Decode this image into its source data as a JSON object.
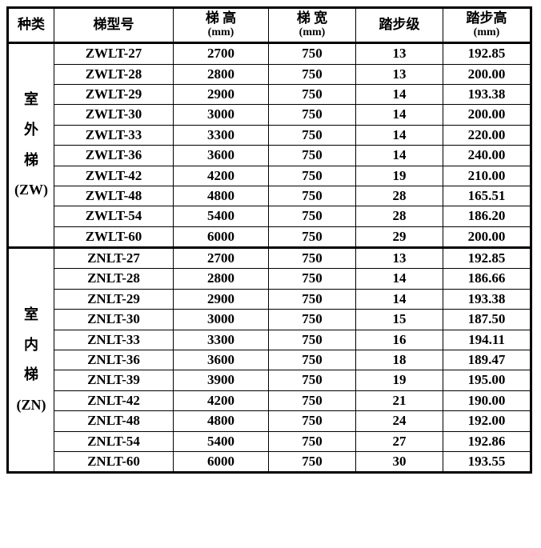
{
  "table": {
    "headers": {
      "category": "种类",
      "model": "梯型号",
      "height": "梯 高",
      "height_unit": "(mm)",
      "width": "梯 宽",
      "width_unit": "(mm)",
      "steps": "踏步级",
      "step_height": "踏步高",
      "step_height_unit": "(mm)"
    },
    "categories": [
      {
        "label_chars": [
          "室",
          "外",
          "梯"
        ],
        "code": "(ZW)",
        "rows": [
          {
            "model": "ZWLT-27",
            "h": "2700",
            "w": "750",
            "steps": "13",
            "sh": "192.85"
          },
          {
            "model": "ZWLT-28",
            "h": "2800",
            "w": "750",
            "steps": "13",
            "sh": "200.00"
          },
          {
            "model": "ZWLT-29",
            "h": "2900",
            "w": "750",
            "steps": "14",
            "sh": "193.38"
          },
          {
            "model": "ZWLT-30",
            "h": "3000",
            "w": "750",
            "steps": "14",
            "sh": "200.00"
          },
          {
            "model": "ZWLT-33",
            "h": "3300",
            "w": "750",
            "steps": "14",
            "sh": "220.00"
          },
          {
            "model": "ZWLT-36",
            "h": "3600",
            "w": "750",
            "steps": "14",
            "sh": "240.00"
          },
          {
            "model": "ZWLT-42",
            "h": "4200",
            "w": "750",
            "steps": "19",
            "sh": "210.00"
          },
          {
            "model": "ZWLT-48",
            "h": "4800",
            "w": "750",
            "steps": "28",
            "sh": "165.51"
          },
          {
            "model": "ZWLT-54",
            "h": "5400",
            "w": "750",
            "steps": "28",
            "sh": "186.20"
          },
          {
            "model": "ZWLT-60",
            "h": "6000",
            "w": "750",
            "steps": "29",
            "sh": "200.00"
          }
        ]
      },
      {
        "label_chars": [
          "室",
          "内",
          "梯"
        ],
        "code": "(ZN)",
        "rows": [
          {
            "model": "ZNLT-27",
            "h": "2700",
            "w": "750",
            "steps": "13",
            "sh": "192.85"
          },
          {
            "model": "ZNLT-28",
            "h": "2800",
            "w": "750",
            "steps": "14",
            "sh": "186.66"
          },
          {
            "model": "ZNLT-29",
            "h": "2900",
            "w": "750",
            "steps": "14",
            "sh": "193.38"
          },
          {
            "model": "ZNLT-30",
            "h": "3000",
            "w": "750",
            "steps": "15",
            "sh": "187.50"
          },
          {
            "model": "ZNLT-33",
            "h": "3300",
            "w": "750",
            "steps": "16",
            "sh": "194.11"
          },
          {
            "model": "ZNLT-36",
            "h": "3600",
            "w": "750",
            "steps": "18",
            "sh": "189.47"
          },
          {
            "model": "ZNLT-39",
            "h": "3900",
            "w": "750",
            "steps": "19",
            "sh": "195.00"
          },
          {
            "model": "ZNLT-42",
            "h": "4200",
            "w": "750",
            "steps": "21",
            "sh": "190.00"
          },
          {
            "model": "ZNLT-48",
            "h": "4800",
            "w": "750",
            "steps": "24",
            "sh": "192.00"
          },
          {
            "model": "ZNLT-54",
            "h": "5400",
            "w": "750",
            "steps": "27",
            "sh": "192.86"
          },
          {
            "model": "ZNLT-60",
            "h": "6000",
            "w": "750",
            "steps": "30",
            "sh": "193.55"
          }
        ]
      }
    ]
  }
}
